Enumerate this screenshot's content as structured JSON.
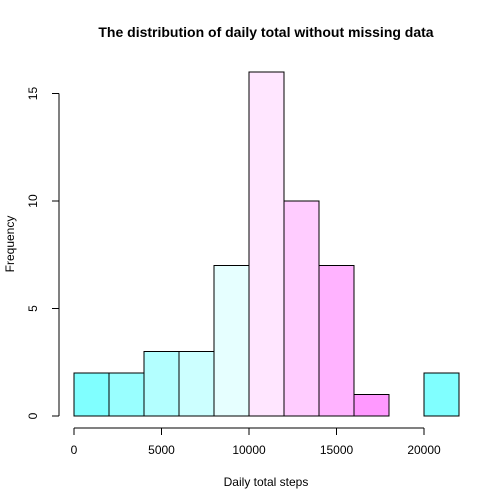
{
  "chart_data": {
    "type": "bar",
    "title": "The distribution of daily total without missing data",
    "xlabel": "Daily total steps",
    "ylabel": "Frequency",
    "bins": [
      {
        "from": 0,
        "to": 2000,
        "count": 2,
        "color": "#80FFFF"
      },
      {
        "from": 2000,
        "to": 4000,
        "count": 2,
        "color": "#99FFFF"
      },
      {
        "from": 4000,
        "to": 6000,
        "count": 3,
        "color": "#B3FFFF"
      },
      {
        "from": 6000,
        "to": 8000,
        "count": 3,
        "color": "#CCFFFF"
      },
      {
        "from": 8000,
        "to": 10000,
        "count": 7,
        "color": "#E6FFFF"
      },
      {
        "from": 10000,
        "to": 12000,
        "count": 16,
        "color": "#FFE6FF"
      },
      {
        "from": 12000,
        "to": 14000,
        "count": 10,
        "color": "#FFCCFF"
      },
      {
        "from": 14000,
        "to": 16000,
        "count": 7,
        "color": "#FFB3FF"
      },
      {
        "from": 16000,
        "to": 18000,
        "count": 1,
        "color": "#FF99FF"
      },
      {
        "from": 18000,
        "to": 20000,
        "count": 0,
        "color": "#FF80FF"
      },
      {
        "from": 20000,
        "to": 22000,
        "count": 2,
        "color": "#80FFFF"
      }
    ],
    "xlim": [
      0,
      22000
    ],
    "ylim": [
      0,
      16
    ],
    "xticks": [
      0,
      5000,
      10000,
      15000,
      20000
    ],
    "yticks": [
      0,
      5,
      10,
      15
    ],
    "grid": false,
    "legend": "none"
  }
}
